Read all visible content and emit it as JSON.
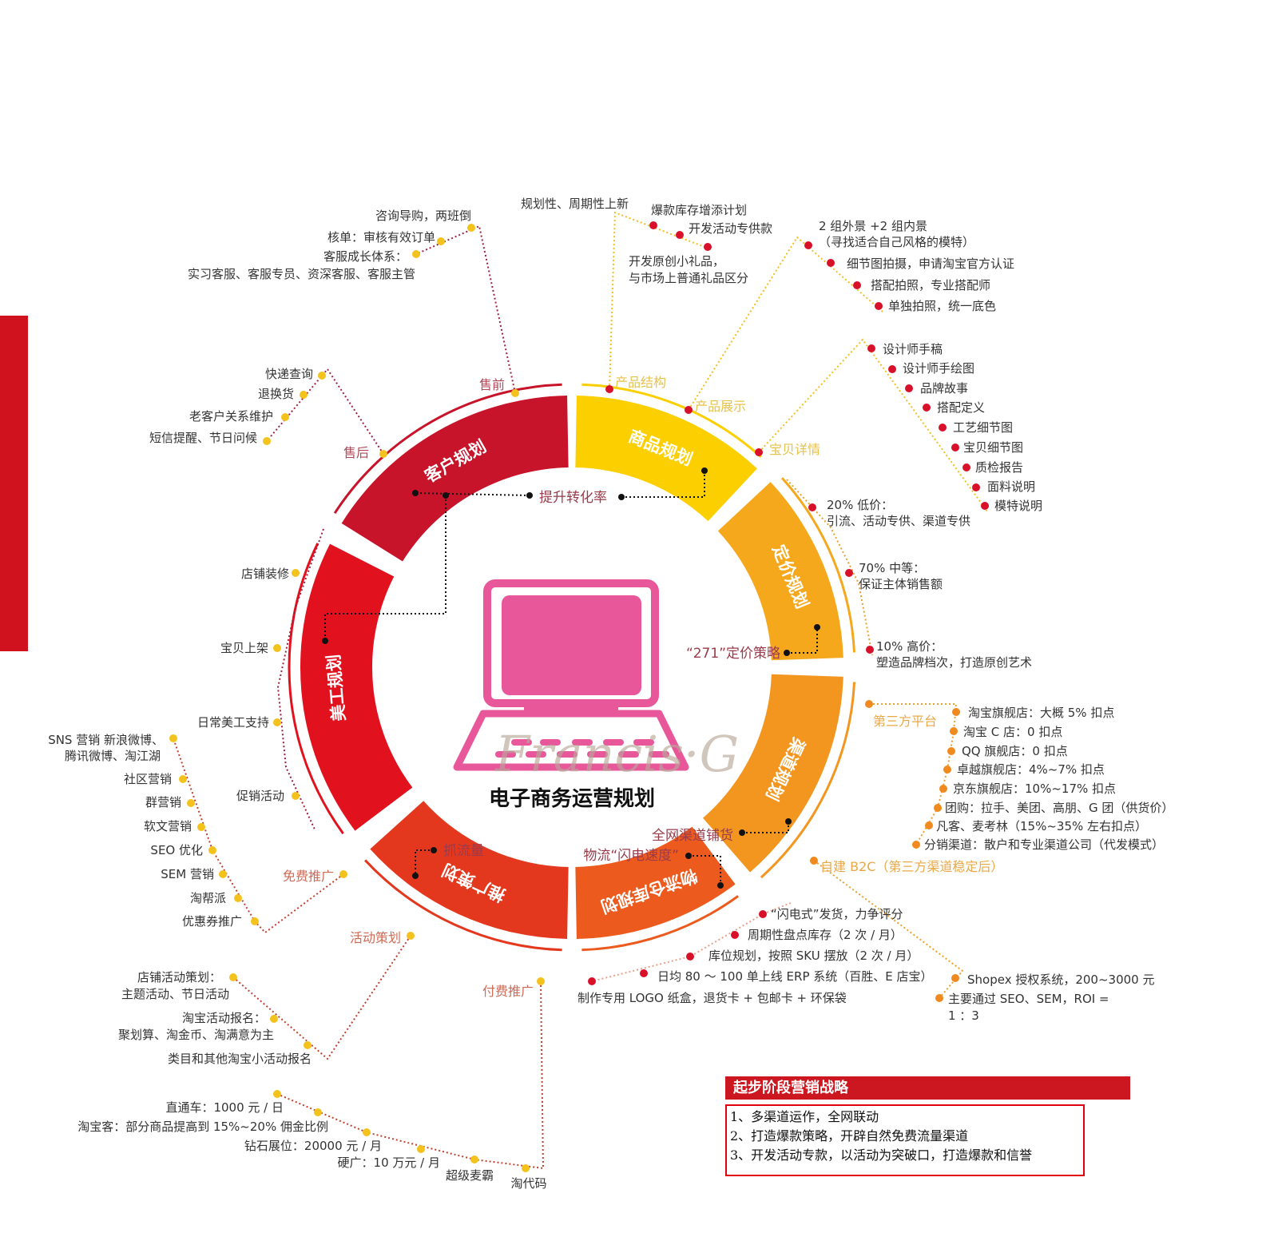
{
  "title": "电子商务运营规划",
  "watermark": "Francis·G",
  "colors": {
    "accent": "#d0121e",
    "monitor": "#e8579a"
  },
  "icons": [
    "computer-monitor-icon",
    "keyboard-icon"
  ],
  "segments": [
    {
      "label": "商品规划",
      "color": "#fbcf00"
    },
    {
      "label": "定价规划",
      "color": "#f5a81c"
    },
    {
      "label": "渠道规划",
      "color": "#f2961f"
    },
    {
      "label": "物流仓库规划",
      "color": "#ec5a1e"
    },
    {
      "label": "推广策划",
      "color": "#e4381e"
    },
    {
      "label": "美工规划",
      "color": "#e2111e"
    },
    {
      "label": "客户规划",
      "color": "#c8142a"
    }
  ],
  "connectors": {
    "conversion": "提升转化率",
    "pricing": "“271”定价策略",
    "channel": "全网渠道铺货",
    "logistics": "物流“闪电速度”",
    "traffic": "抓流量"
  },
  "customer": {
    "presale": {
      "label": "售前",
      "items": [
        "咨询导购，两班倒",
        "核单：审核有效订单",
        "客服成长体系：",
        "实习客服、客服专员、资深客服、客服主管"
      ]
    },
    "aftersale": {
      "label": "售后",
      "items": [
        "快递查询",
        "退换货",
        "老客户关系维护",
        "短信提醒、节日问候"
      ]
    }
  },
  "product": {
    "structure": {
      "label": "产品结构",
      "items": [
        "规划性、周期性上新",
        "爆款库存增添计划",
        "开发活动专供款",
        "开发原创小礼品，",
        "与市场上普通礼品区分"
      ]
    },
    "display": {
      "label": "产品展示",
      "items": [
        "2 组外景 +2 组内景",
        "（寻找适合自己风格的模特）",
        "细节图拍摄，申请淘宝官方认证",
        "搭配拍照，专业搭配师",
        "单独拍照，统一底色"
      ]
    },
    "detail": {
      "label": "宝贝详情",
      "items": [
        "设计师手稿",
        "设计师手绘图",
        "品牌故事",
        "搭配定义",
        "工艺细节图",
        "宝贝细节图",
        "质检报告",
        "面料说明",
        "模特说明"
      ]
    }
  },
  "pricing": {
    "items": [
      "20% 低价：",
      "引流、活动专供、渠道专供",
      "70% 中等：",
      "保证主体销售额",
      "10% 高价：",
      "塑造品牌档次，打造原创艺术"
    ]
  },
  "channel": {
    "third_party": {
      "label": "第三方平台",
      "items": [
        "淘宝旗舰店：大概 5% 扣点",
        "淘宝 C 店：0 扣点",
        "QQ 旗舰店：0 扣点",
        "卓越旗舰店：4%~7% 扣点",
        "京东旗舰店：10%~17% 扣点",
        "团购：拉手、美团、高朋、G 团（供货价）",
        "凡客、麦考林（15%~35% 左右扣点）",
        "分销渠道：散户和专业渠道公司（代发模式）"
      ]
    },
    "b2c": {
      "label": "自建 B2C（第三方渠道稳定后）",
      "items": [
        "Shopex 授权系统，200~3000 元",
        "主要通过 SEO、SEM，ROI =",
        "1 ：3"
      ]
    }
  },
  "logistics": {
    "items": [
      "“闪电式”发货，力争评分",
      "周期性盘点库存（2 次 / 月）",
      "库位规划，按照 SKU 摆放（2 次 / 月）",
      "日均 80 ～ 100 单上线 ERP 系统（百胜、E 店宝）",
      "制作专用 LOGO 纸盒，退货卡 + 包邮卡 + 环保袋"
    ]
  },
  "art": {
    "items": [
      "店铺装修",
      "宝贝上架",
      "日常美工支持",
      "促销活动"
    ]
  },
  "promotion": {
    "free": {
      "label": "免费推广",
      "items": [
        "SNS 营销 新浪微博、",
        "腾讯微博、淘江湖",
        "社区营销",
        "群营销",
        "软文营销",
        "SEO 优化",
        "SEM 营销",
        "淘帮派",
        "优惠券推广"
      ]
    },
    "activity": {
      "label": "活动策划",
      "items": [
        "店铺活动策划：",
        "主题活动、节日活动",
        "淘宝活动报名：",
        "聚划算、淘金币、淘满意为主",
        "类目和其他淘宝小活动报名"
      ]
    },
    "paid": {
      "label": "付费推广",
      "items": [
        "直通车：1000 元 / 日",
        "淘宝客：部分商品提高到 15%~20% 佣金比例",
        "钻石展位：20000 元 / 月",
        "硬广：10 万元 / 月",
        "超级麦霸",
        "淘代码"
      ]
    }
  },
  "strategy": {
    "title": "起步阶段营销战略",
    "items": [
      "1、多渠道运作，全网联动",
      "2、打造爆款策略，开辟自然免费流量渠道",
      "3、开发活动专款，以活动为突破口，打造爆款和信誉"
    ]
  }
}
